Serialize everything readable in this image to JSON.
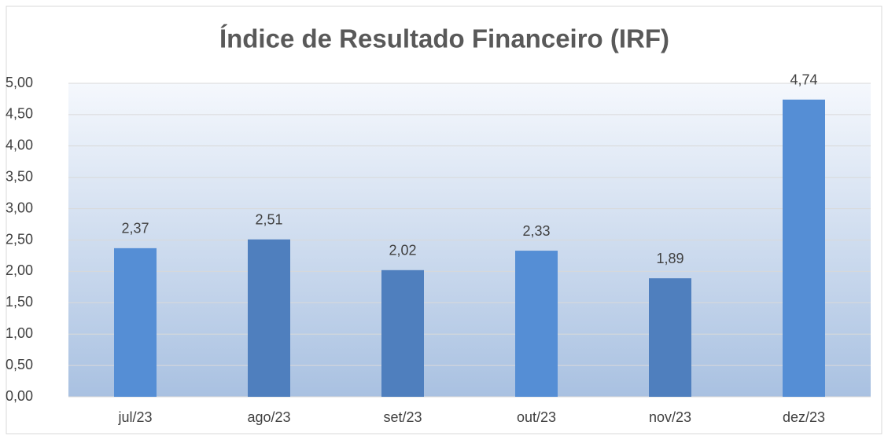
{
  "chart_data": {
    "type": "bar",
    "title": "Índice de Resultado Financeiro (IRF)",
    "categories": [
      "jul/23",
      "ago/23",
      "set/23",
      "out/23",
      "nov/23",
      "dez/23"
    ],
    "values": [
      2.37,
      2.51,
      2.02,
      2.33,
      1.89,
      4.74
    ],
    "value_labels": [
      "2,37",
      "2,51",
      "2,02",
      "2,33",
      "1,89",
      "4,74"
    ],
    "colors": [
      "#558ed5",
      "#4f7fbe",
      "#4f7fbe",
      "#558ed5",
      "#4f7fbe",
      "#558ed5"
    ],
    "ylim": [
      0,
      5
    ],
    "yticks": [
      {
        "value": 0,
        "label": "0,00"
      },
      {
        "value": 0.5,
        "label": "0,50"
      },
      {
        "value": 1,
        "label": "1,00"
      },
      {
        "value": 1.5,
        "label": "1,50"
      },
      {
        "value": 2,
        "label": "2,00"
      },
      {
        "value": 2.5,
        "label": "2,50"
      },
      {
        "value": 3,
        "label": "3,00"
      },
      {
        "value": 3.5,
        "label": "3,50"
      },
      {
        "value": 4,
        "label": "4,00"
      },
      {
        "value": 4.5,
        "label": "4,50"
      },
      {
        "value": 5,
        "label": "5,00"
      }
    ],
    "grid": true
  }
}
